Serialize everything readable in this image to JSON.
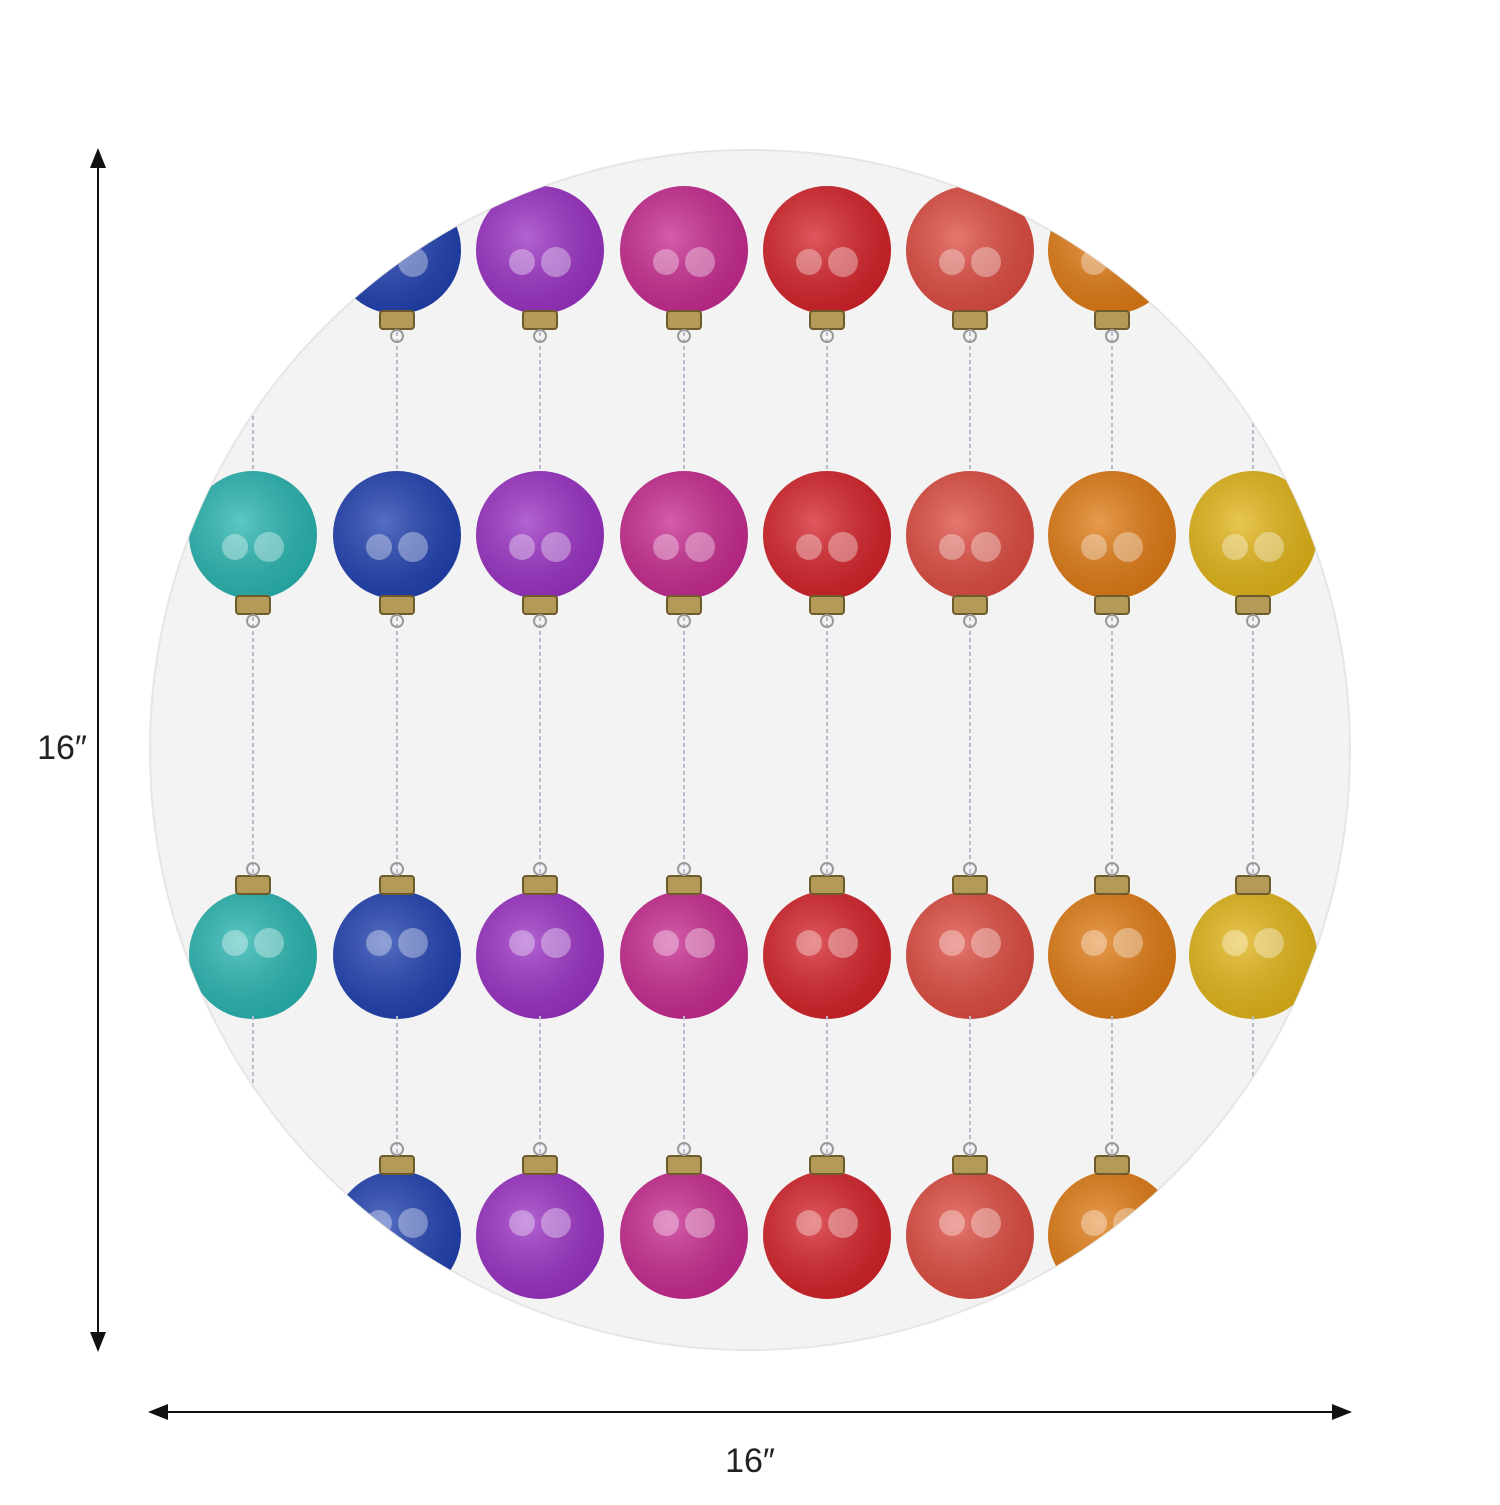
{
  "dimensions": {
    "height": "16″",
    "width": "16″"
  }
}
